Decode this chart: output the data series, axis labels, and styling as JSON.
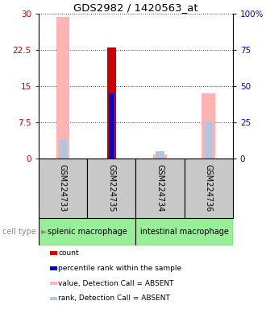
{
  "title": "GDS2982 / 1420563_at",
  "samples": [
    "GSM224733",
    "GSM224735",
    "GSM224734",
    "GSM224736"
  ],
  "cell_types": [
    {
      "label": "splenic macrophage",
      "cols": [
        0,
        1
      ]
    },
    {
      "label": "intestinal macrophage",
      "cols": [
        2,
        3
      ]
    }
  ],
  "ylim_left": [
    0,
    30
  ],
  "ylim_right": [
    0,
    100
  ],
  "yticks_left": [
    0,
    7.5,
    15,
    22.5,
    30
  ],
  "yticks_right": [
    0,
    25,
    50,
    75,
    100
  ],
  "ytick_labels_right": [
    "0",
    "25",
    "50",
    "75",
    "100%"
  ],
  "bars": [
    {
      "sample_idx": 0,
      "count_val": null,
      "rank_val": null,
      "absent_value_val": 29.3,
      "absent_rank_val": 13.0
    },
    {
      "sample_idx": 1,
      "count_val": 23.0,
      "rank_val": 45.0,
      "absent_value_val": null,
      "absent_rank_val": null
    },
    {
      "sample_idx": 2,
      "count_val": null,
      "rank_val": null,
      "absent_value_val": 0.7,
      "absent_rank_val": 5.0
    },
    {
      "sample_idx": 3,
      "count_val": null,
      "rank_val": null,
      "absent_value_val": 13.5,
      "absent_rank_val": 25.0
    }
  ],
  "legend_items": [
    {
      "color": "#cc0000",
      "label": "count"
    },
    {
      "color": "#0000cc",
      "label": "percentile rank within the sample"
    },
    {
      "color": "#ffb3b3",
      "label": "value, Detection Call = ABSENT"
    },
    {
      "color": "#b3c6e0",
      "label": "rank, Detection Call = ABSENT"
    }
  ],
  "sample_label_bg": "#c8c8c8",
  "cell_type_color": "#99ee99",
  "left_axis_color": "#cc0000",
  "right_axis_color": "#0000cc",
  "grid_color": "#333333",
  "absent_value_color": "#ffb3b3",
  "absent_rank_color": "#b3c6e0",
  "count_color": "#cc0000",
  "rank_color": "#0000cc"
}
